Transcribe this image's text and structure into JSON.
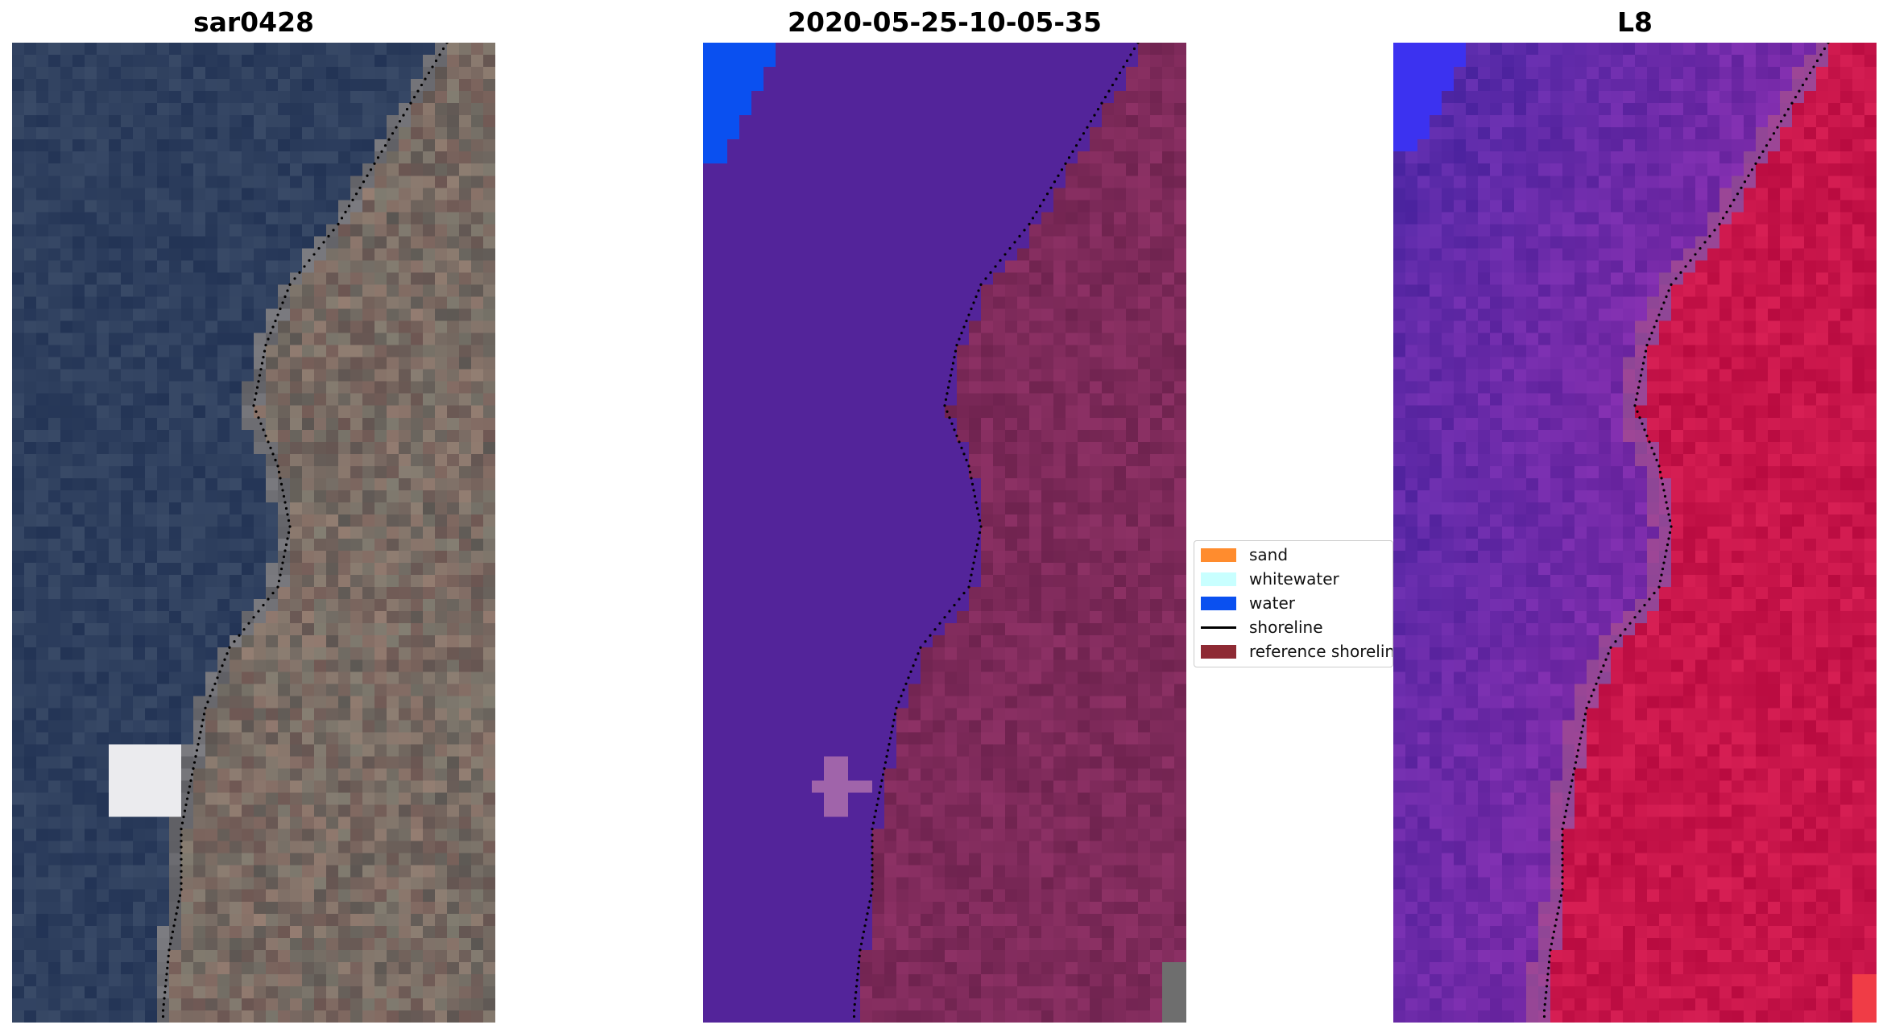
{
  "panels": [
    {
      "title": "sar0428",
      "palette": "rgb"
    },
    {
      "title": "2020-05-25-10-05-35",
      "palette": "classified"
    },
    {
      "title": "L8",
      "palette": "falsecolor"
    }
  ],
  "legend": {
    "items": [
      {
        "label": "sand",
        "type": "patch",
        "color": "#FF8C2E"
      },
      {
        "label": "whitewater",
        "type": "patch",
        "color": "#C8FFFF"
      },
      {
        "label": "water",
        "type": "patch",
        "color": "#0A50F0"
      },
      {
        "label": "shoreline",
        "type": "line",
        "color": "#000000"
      },
      {
        "label": "reference shoreline",
        "type": "patch",
        "color": "#8E2A34"
      }
    ]
  },
  "colors": {
    "rgb_sea": "#2E3F5E",
    "rgb_land": "#6E6A62",
    "classified_water": "#53249A",
    "classified_land": "#7E2A5A",
    "falsecolor_sea": "#7A2AA8",
    "falsecolor_land": "#C8154A"
  }
}
